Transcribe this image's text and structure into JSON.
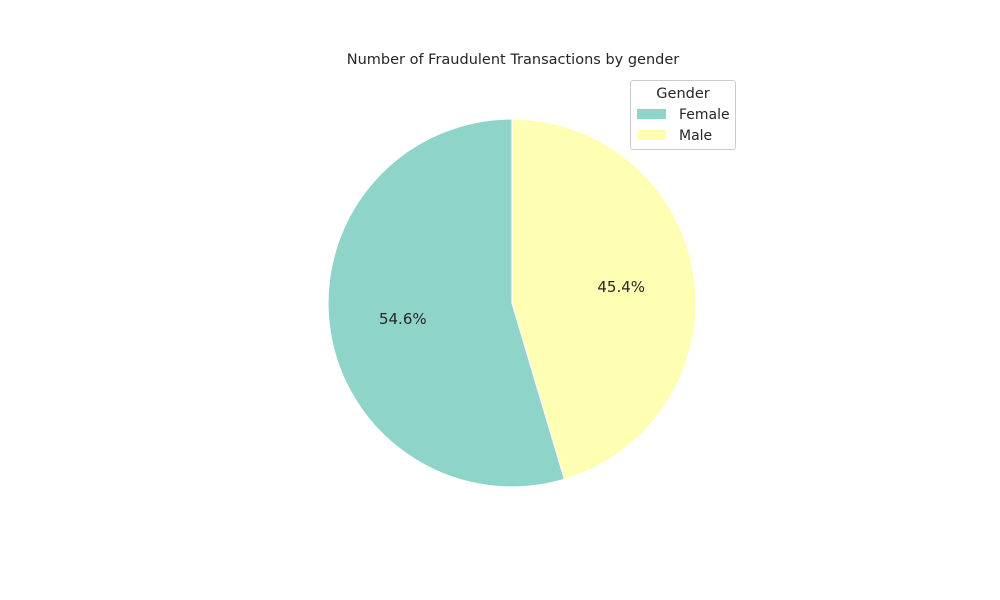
{
  "chart_data": {
    "type": "pie",
    "title": "Number of Fraudulent Transactions by gender",
    "categories": [
      "Female",
      "Male"
    ],
    "values": [
      54.6,
      45.4
    ],
    "labels": [
      "54.6%",
      "45.4%"
    ],
    "colors": [
      "#8fd4c8",
      "#ffffb3"
    ],
    "start_angle_deg": 90,
    "direction": "clockwise-from-top: Male first, Female second",
    "legend": {
      "title": "Gender",
      "placement": "top-right",
      "entries": [
        "Female",
        "Male"
      ]
    }
  }
}
